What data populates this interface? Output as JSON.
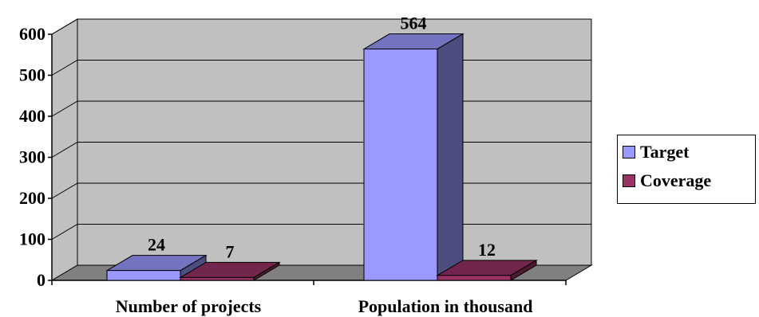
{
  "chart_data": {
    "type": "bar",
    "categories": [
      "Number of projects",
      "Population in thousand"
    ],
    "series": [
      {
        "name": "Target",
        "values": [
          24,
          564
        ]
      },
      {
        "name": "Coverage",
        "values": [
          7,
          12
        ]
      }
    ],
    "title": "",
    "xlabel": "",
    "ylabel": "",
    "ylim": [
      0,
      600
    ],
    "yticks": [
      "0",
      "100",
      "200",
      "300",
      "400",
      "500",
      "600"
    ],
    "data_labels": [
      "24",
      "7",
      "564",
      "12"
    ],
    "grid": true,
    "legend_position": "right",
    "colors": {
      "target_front": "#9999FF",
      "target_top": "#7373BF",
      "target_side": "#4D4D80",
      "coverage_front": "#993366",
      "coverage_top": "#73264D",
      "coverage_side": "#4D1933",
      "wall": "#C0C0C0",
      "floor": "#808080"
    }
  }
}
